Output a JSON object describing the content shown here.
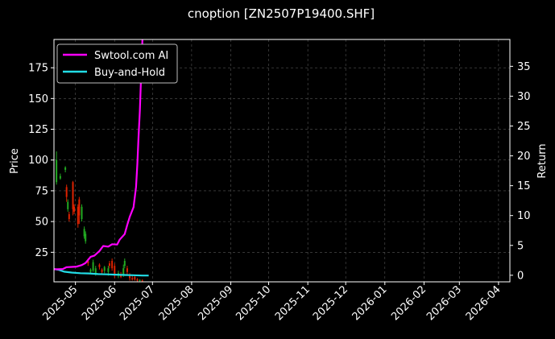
{
  "chart_data": {
    "type": "line",
    "title": "cnoption [ZN2507P19400.SHF]",
    "ylabel_left": "Price",
    "ylabel_right": "Return",
    "xlabel": "",
    "grid": true,
    "legend_position": "top-left",
    "background": "#000000",
    "x_ticks": [
      "2025-05",
      "2025-06",
      "2025-07",
      "2025-08",
      "2025-09",
      "2025-10",
      "2025-11",
      "2025-12",
      "2026-01",
      "2026-02",
      "2026-03",
      "2026-04"
    ],
    "y_left_ticks": [
      25,
      50,
      75,
      100,
      125,
      150,
      175
    ],
    "y_left_lim": [
      1,
      198
    ],
    "y_right_ticks": [
      0,
      5,
      10,
      15,
      20,
      25,
      30,
      35
    ],
    "y_right_lim": [
      -1.1,
      39.5
    ],
    "x_lim": [
      "2025-04-14",
      "2026-04-10"
    ],
    "series": [
      {
        "name": "Swtool.com AI",
        "axis": "right",
        "color": "#ff00ff",
        "x": [
          "2025-04-14",
          "2025-04-17",
          "2025-04-21",
          "2025-04-24",
          "2025-04-28",
          "2025-05-02",
          "2025-05-06",
          "2025-05-09",
          "2025-05-13",
          "2025-05-16",
          "2025-05-20",
          "2025-05-23",
          "2025-05-27",
          "2025-05-30",
          "2025-06-03",
          "2025-06-05",
          "2025-06-09",
          "2025-06-11",
          "2025-06-13",
          "2025-06-16",
          "2025-06-18",
          "2025-06-19",
          "2025-06-20",
          "2025-06-21",
          "2025-06-22",
          "2025-06-23"
        ],
        "values": [
          1.0,
          1.0,
          1.05,
          1.35,
          1.4,
          1.45,
          1.7,
          2.05,
          3.1,
          3.3,
          4.05,
          4.9,
          4.8,
          5.2,
          5.15,
          5.95,
          6.9,
          8.4,
          9.8,
          11.4,
          14.8,
          18.6,
          23.2,
          27.5,
          33.5,
          39.5
        ]
      },
      {
        "name": "Buy-and-Hold",
        "axis": "right",
        "color": "#22dde6",
        "x": [
          "2025-04-14",
          "2025-04-18",
          "2025-04-22",
          "2025-04-28",
          "2025-05-05",
          "2025-05-12",
          "2025-05-19",
          "2025-05-26",
          "2025-06-02",
          "2025-06-09",
          "2025-06-16",
          "2025-06-23",
          "2025-06-28"
        ],
        "values": [
          1.05,
          0.9,
          0.6,
          0.45,
          0.35,
          0.3,
          0.2,
          0.15,
          0.1,
          0.05,
          0.0,
          -0.05,
          -0.05
        ]
      }
    ],
    "candles": {
      "axis": "left",
      "up_color": "#22aa22",
      "down_color": "#dd2200",
      "items": [
        {
          "date": "2025-04-16",
          "open": 82,
          "close": 100,
          "high": 107,
          "low": 80
        },
        {
          "date": "2025-04-19",
          "open": 85,
          "close": 87,
          "high": 89,
          "low": 84
        },
        {
          "date": "2025-04-23",
          "open": 92,
          "close": 94,
          "high": 95,
          "low": 90
        },
        {
          "date": "2025-04-24",
          "open": 78,
          "close": 70,
          "high": 80,
          "low": 66
        },
        {
          "date": "2025-04-25",
          "open": 60,
          "close": 66,
          "high": 68,
          "low": 58
        },
        {
          "date": "2025-04-26",
          "open": 56,
          "close": 52,
          "high": 58,
          "low": 50
        },
        {
          "date": "2025-04-29",
          "open": 82,
          "close": 60,
          "high": 83,
          "low": 55
        },
        {
          "date": "2025-04-30",
          "open": 62,
          "close": 58,
          "high": 64,
          "low": 56
        },
        {
          "date": "2025-05-03",
          "open": 62,
          "close": 48,
          "high": 64,
          "low": 45
        },
        {
          "date": "2025-05-04",
          "open": 68,
          "close": 55,
          "high": 70,
          "low": 48
        },
        {
          "date": "2025-05-06",
          "open": 52,
          "close": 62,
          "high": 64,
          "low": 50
        },
        {
          "date": "2025-05-08",
          "open": 38,
          "close": 44,
          "high": 46,
          "low": 36
        },
        {
          "date": "2025-05-09",
          "open": 34,
          "close": 40,
          "high": 42,
          "low": 32
        },
        {
          "date": "2025-05-11",
          "open": 18,
          "close": 16,
          "high": 20,
          "low": 14
        },
        {
          "date": "2025-05-13",
          "open": 9,
          "close": 11,
          "high": 12,
          "low": 8
        },
        {
          "date": "2025-05-15",
          "open": 10,
          "close": 17,
          "high": 19,
          "low": 9
        },
        {
          "date": "2025-05-17",
          "open": 8,
          "close": 12,
          "high": 14,
          "low": 6
        },
        {
          "date": "2025-05-20",
          "open": 15,
          "close": 13,
          "high": 16,
          "low": 11
        },
        {
          "date": "2025-05-22",
          "open": 11,
          "close": 9,
          "high": 12,
          "low": 7
        },
        {
          "date": "2025-05-24",
          "open": 10,
          "close": 13,
          "high": 14,
          "low": 8
        },
        {
          "date": "2025-05-27",
          "open": 9,
          "close": 12,
          "high": 14,
          "low": 6
        },
        {
          "date": "2025-05-28",
          "open": 16,
          "close": 14,
          "high": 18,
          "low": 12
        },
        {
          "date": "2025-05-30",
          "open": 18,
          "close": 12,
          "high": 20,
          "low": 10
        },
        {
          "date": "2025-06-01",
          "open": 14,
          "close": 6,
          "high": 16,
          "low": 4
        },
        {
          "date": "2025-06-04",
          "open": 6,
          "close": 8,
          "high": 10,
          "low": 4
        },
        {
          "date": "2025-06-06",
          "open": 7,
          "close": 5,
          "high": 9,
          "low": 4
        },
        {
          "date": "2025-06-08",
          "open": 7,
          "close": 12,
          "high": 15,
          "low": 5
        },
        {
          "date": "2025-06-09",
          "open": 14,
          "close": 18,
          "high": 20,
          "low": 12
        },
        {
          "date": "2025-06-11",
          "open": 12,
          "close": 9,
          "high": 14,
          "low": 6
        },
        {
          "date": "2025-06-13",
          "open": 6,
          "close": 4,
          "high": 8,
          "low": 2
        },
        {
          "date": "2025-06-15",
          "open": 4,
          "close": 3,
          "high": 6,
          "low": 2
        },
        {
          "date": "2025-06-17",
          "open": 5,
          "close": 3,
          "high": 6,
          "low": 2
        },
        {
          "date": "2025-06-19",
          "open": 3,
          "close": 2,
          "high": 4,
          "low": 1
        },
        {
          "date": "2025-06-21",
          "open": 2,
          "close": 2.5,
          "high": 3,
          "low": 1
        },
        {
          "date": "2025-06-23",
          "open": 2,
          "close": 1.5,
          "high": 3,
          "low": 1
        }
      ]
    }
  }
}
